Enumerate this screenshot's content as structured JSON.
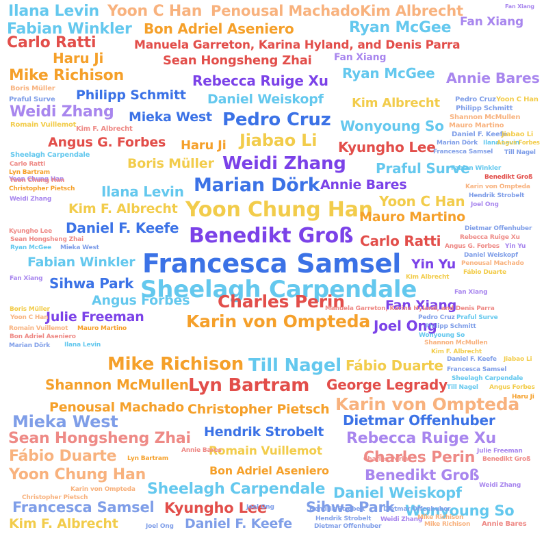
{
  "palette": {
    "blue": "#3b72e6",
    "lightblue": "#64c8ee",
    "purple": "#7b42e8",
    "orange": "#f5a02a",
    "red": "#e24e4a",
    "yellow": "#f2cc4b",
    "peach": "#f8b27e",
    "periwinkle": "#7f9ee8",
    "pink": "#ee8a86",
    "lavender": "#a886ee"
  },
  "words": [
    {
      "text": "Ilana Levin",
      "color": "lightblue"
    },
    {
      "text": "Yoon C Han",
      "color": "peach"
    },
    {
      "text": "Penousal Machado",
      "color": "peach"
    },
    {
      "text": "Kim Albrecht",
      "color": "peach"
    },
    {
      "text": "Fan Xiang",
      "color": "lavender"
    },
    {
      "text": "Fabian Winkler",
      "color": "lightblue"
    },
    {
      "text": "Bon Adriel Aseniero",
      "color": "orange"
    },
    {
      "text": "Ryan McGee",
      "color": "lightblue"
    },
    {
      "text": "Fan Xiang",
      "color": "lavender"
    },
    {
      "text": "Carlo Ratti",
      "color": "red"
    },
    {
      "text": "Manuela Garreton, Karina Hyland, and Denis Parra",
      "color": "red"
    },
    {
      "text": "Haru Ji",
      "color": "orange"
    },
    {
      "text": "Sean Hongsheng Zhai",
      "color": "red"
    },
    {
      "text": "Fan Xiang",
      "color": "lavender"
    },
    {
      "text": "Mike Richison",
      "color": "orange"
    },
    {
      "text": "Ryan McGee",
      "color": "lightblue"
    },
    {
      "text": "Annie Bares",
      "color": "lavender"
    },
    {
      "text": "Rebecca Ruige Xu",
      "color": "purple"
    },
    {
      "text": "Philipp Schmitt",
      "color": "blue"
    },
    {
      "text": "Daniel Weiskopf",
      "color": "lightblue"
    },
    {
      "text": "Kim Albrecht",
      "color": "yellow"
    },
    {
      "text": "Weidi Zhang",
      "color": "lavender"
    },
    {
      "text": "Mieka West",
      "color": "blue"
    },
    {
      "text": "Pedro Cruz",
      "color": "blue"
    },
    {
      "text": "Wonyoung So",
      "color": "lightblue"
    },
    {
      "text": "Jiabao Li",
      "color": "yellow"
    },
    {
      "text": "Angus G. Forbes",
      "color": "red"
    },
    {
      "text": "Haru Ji",
      "color": "orange"
    },
    {
      "text": "Kyungho Lee",
      "color": "red"
    },
    {
      "text": "Weidi Zhang",
      "color": "purple"
    },
    {
      "text": "Boris Müller",
      "color": "yellow"
    },
    {
      "text": "Praful Surve",
      "color": "lightblue"
    },
    {
      "text": "Marian Dörk",
      "color": "blue"
    },
    {
      "text": "Annie Bares",
      "color": "purple"
    },
    {
      "text": "Ilana Levin",
      "color": "lightblue"
    },
    {
      "text": "Kim F. Albrecht",
      "color": "yellow"
    },
    {
      "text": "Yoon Chung Han",
      "color": "yellow"
    },
    {
      "text": "Yoon C Han",
      "color": "yellow"
    },
    {
      "text": "Daniel F. Keefe",
      "color": "blue"
    },
    {
      "text": "Mauro Martino",
      "color": "orange"
    },
    {
      "text": "Benedikt Groß",
      "color": "purple"
    },
    {
      "text": "Carlo Ratti",
      "color": "red"
    },
    {
      "text": "Francesca Samsel",
      "color": "blue"
    },
    {
      "text": "Fabian Winkler",
      "color": "lightblue"
    },
    {
      "text": "Yin Yu",
      "color": "purple"
    },
    {
      "text": "Sihwa Park",
      "color": "blue"
    },
    {
      "text": "Sheelagh Carpendale",
      "color": "lightblue"
    },
    {
      "text": "Angus Forbes",
      "color": "lightblue"
    },
    {
      "text": "Charles Perin",
      "color": "red"
    },
    {
      "text": "Fan Xiang",
      "color": "purple"
    },
    {
      "text": "Julie Freeman",
      "color": "purple"
    },
    {
      "text": "Karin von Ompteda",
      "color": "orange"
    },
    {
      "text": "Joel Ong",
      "color": "purple"
    },
    {
      "text": "Mike Richison",
      "color": "orange"
    },
    {
      "text": "Till Nagel",
      "color": "lightblue"
    },
    {
      "text": "Fábio Duarte",
      "color": "yellow"
    },
    {
      "text": "Shannon McMullen",
      "color": "orange"
    },
    {
      "text": "Lyn Bartram",
      "color": "red"
    },
    {
      "text": "George Legrady",
      "color": "red"
    },
    {
      "text": "Karin von Ompteda",
      "color": "peach"
    },
    {
      "text": "Penousal Machado",
      "color": "orange"
    },
    {
      "text": "Christopher Pietsch",
      "color": "orange"
    },
    {
      "text": "Mieka West",
      "color": "periwinkle"
    },
    {
      "text": "Dietmar Offenhuber",
      "color": "blue"
    },
    {
      "text": "Sean Hongsheng Zhai",
      "color": "pink"
    },
    {
      "text": "Hendrik Strobelt",
      "color": "blue"
    },
    {
      "text": "Rebecca Ruige Xu",
      "color": "lavender"
    },
    {
      "text": "Fábio Duarte",
      "color": "peach"
    },
    {
      "text": "Romain Vuillemot",
      "color": "yellow"
    },
    {
      "text": "Charles Perin",
      "color": "pink"
    },
    {
      "text": "Yoon Chung Han",
      "color": "peach"
    },
    {
      "text": "Bon Adriel Aseniero",
      "color": "orange"
    },
    {
      "text": "Benedikt Groß",
      "color": "lavender"
    },
    {
      "text": "Sheelagh Carpendale",
      "color": "lightblue"
    },
    {
      "text": "Daniel Weiskopf",
      "color": "lightblue"
    },
    {
      "text": "Francesca Samsel",
      "color": "periwinkle"
    },
    {
      "text": "Kyungho Lee",
      "color": "red"
    },
    {
      "text": "Sihwa Park",
      "color": "periwinkle"
    },
    {
      "text": "Wonyoung So",
      "color": "lightblue"
    },
    {
      "text": "Kim F. Albrecht",
      "color": "yellow"
    },
    {
      "text": "Daniel F. Keefe",
      "color": "periwinkle"
    },
    {
      "text": "Joel Ong",
      "color": "periwinkle"
    },
    {
      "text": "Hendrik Strobelt",
      "color": "periwinkle"
    },
    {
      "text": "Dietmar Offenhuber",
      "color": "periwinkle"
    },
    {
      "text": "Weidi Zhang",
      "color": "lavender"
    },
    {
      "text": "Mike Richison",
      "color": "peach"
    },
    {
      "text": "Annie Bares",
      "color": "pink"
    },
    {
      "text": "Yoon Chung Han",
      "color": "lavender"
    },
    {
      "text": "Boris Müller",
      "color": "peach"
    },
    {
      "text": "Praful Surve",
      "color": "periwinkle"
    },
    {
      "text": "Romain Vuillemot",
      "color": "yellow"
    },
    {
      "text": "Kim F. Albrecht",
      "color": "pink"
    },
    {
      "text": "Carlo Ratti",
      "color": "pink"
    },
    {
      "text": "Sheelagh Carpendale",
      "color": "lightblue"
    },
    {
      "text": "Lyn Bartram",
      "color": "orange"
    },
    {
      "text": "Yoon Chung Han",
      "color": "pink"
    },
    {
      "text": "Christopher Pietsch",
      "color": "orange"
    },
    {
      "text": "Weidi Zhang",
      "color": "lavender"
    },
    {
      "text": "Kyungho Lee",
      "color": "pink"
    },
    {
      "text": "Sean Hongsheng Zhai",
      "color": "pink"
    },
    {
      "text": "Ryan McGee",
      "color": "lightblue"
    },
    {
      "text": "Mieka West",
      "color": "periwinkle"
    },
    {
      "text": "Fan Xiang",
      "color": "lavender"
    },
    {
      "text": "Boris Müller",
      "color": "yellow"
    },
    {
      "text": "Yoon C Han",
      "color": "peach"
    },
    {
      "text": "Romain Vuillemot",
      "color": "peach"
    },
    {
      "text": "Mauro Martino",
      "color": "orange"
    },
    {
      "text": "Bon Adriel Aseniero",
      "color": "pink"
    },
    {
      "text": "Marian Dörk",
      "color": "periwinkle"
    },
    {
      "text": "Ilana Levin",
      "color": "lightblue"
    },
    {
      "text": "Pedro Cruz",
      "color": "periwinkle"
    },
    {
      "text": "Yoon C Han",
      "color": "yellow"
    },
    {
      "text": "Philipp Schmitt",
      "color": "periwinkle"
    },
    {
      "text": "Shannon McMullen",
      "color": "peach"
    },
    {
      "text": "Mauro Martino",
      "color": "peach"
    },
    {
      "text": "Daniel F. Keefe",
      "color": "periwinkle"
    },
    {
      "text": "Jiabao Li",
      "color": "yellow"
    },
    {
      "text": "Marian Dörk",
      "color": "periwinkle"
    },
    {
      "text": "Ilana Levin",
      "color": "lightblue"
    },
    {
      "text": "Angus Forbes",
      "color": "yellow"
    },
    {
      "text": "Francesca Samsel",
      "color": "periwinkle"
    },
    {
      "text": "Till Nagel",
      "color": "periwinkle"
    },
    {
      "text": "Fabian Winkler",
      "color": "lightblue"
    },
    {
      "text": "Benedikt Groß",
      "color": "red"
    },
    {
      "text": "Karin von Ompteda",
      "color": "peach"
    },
    {
      "text": "Hendrik Strobelt",
      "color": "periwinkle"
    },
    {
      "text": "Joel Ong",
      "color": "lavender"
    },
    {
      "text": "Dietmar Offenhuber",
      "color": "periwinkle"
    },
    {
      "text": "Rebecca Ruige Xu",
      "color": "pink"
    },
    {
      "text": "Angus G. Forbes",
      "color": "pink"
    },
    {
      "text": "Yin Yu",
      "color": "lavender"
    },
    {
      "text": "Daniel Weiskopf",
      "color": "periwinkle"
    },
    {
      "text": "Penousal Machado",
      "color": "peach"
    },
    {
      "text": "Fábio Duarte",
      "color": "yellow"
    },
    {
      "text": "Kim Albrecht",
      "color": "yellow"
    },
    {
      "text": "Manuela Garreton, Karina Hyland, and Denis Parra",
      "color": "pink"
    },
    {
      "text": "Fan Xiang",
      "color": "lavender"
    },
    {
      "text": "Pedro Cruz",
      "color": "periwinkle"
    },
    {
      "text": "Praful Surve",
      "color": "lightblue"
    },
    {
      "text": "Philipp Schmitt",
      "color": "periwinkle"
    },
    {
      "text": "Wonyoung So",
      "color": "lightblue"
    },
    {
      "text": "Shannon McMullen",
      "color": "peach"
    },
    {
      "text": "Kim F. Albrecht",
      "color": "yellow"
    },
    {
      "text": "Daniel F. Keefe",
      "color": "periwinkle"
    },
    {
      "text": "Jiabao Li",
      "color": "yellow"
    },
    {
      "text": "Francesca Samsel",
      "color": "periwinkle"
    },
    {
      "text": "Sheelagh Carpendale",
      "color": "lightblue"
    },
    {
      "text": "Till Nagel",
      "color": "lightblue"
    },
    {
      "text": "Angus Forbes",
      "color": "yellow"
    },
    {
      "text": "Haru Ji",
      "color": "orange"
    },
    {
      "text": "Julie Freeman",
      "color": "lavender"
    },
    {
      "text": "Benedikt Groß",
      "color": "pink"
    },
    {
      "text": "Charles Perin",
      "color": "pink"
    },
    {
      "text": "Karin von Ompteda",
      "color": "peach"
    },
    {
      "text": "Christopher Pietsch",
      "color": "peach"
    },
    {
      "text": "Weidi Zhang",
      "color": "lavender"
    },
    {
      "text": "Joel Ong",
      "color": "periwinkle"
    },
    {
      "text": "Hendrik Strobelt",
      "color": "periwinkle"
    },
    {
      "text": "Dietmar Offenhuber",
      "color": "periwinkle"
    },
    {
      "text": "Mike Richison",
      "color": "peach"
    },
    {
      "text": "Annie Bares",
      "color": "pink"
    },
    {
      "text": "Lyn Bartram",
      "color": "orange"
    },
    {
      "text": "George Legrady",
      "color": "orange"
    }
  ]
}
